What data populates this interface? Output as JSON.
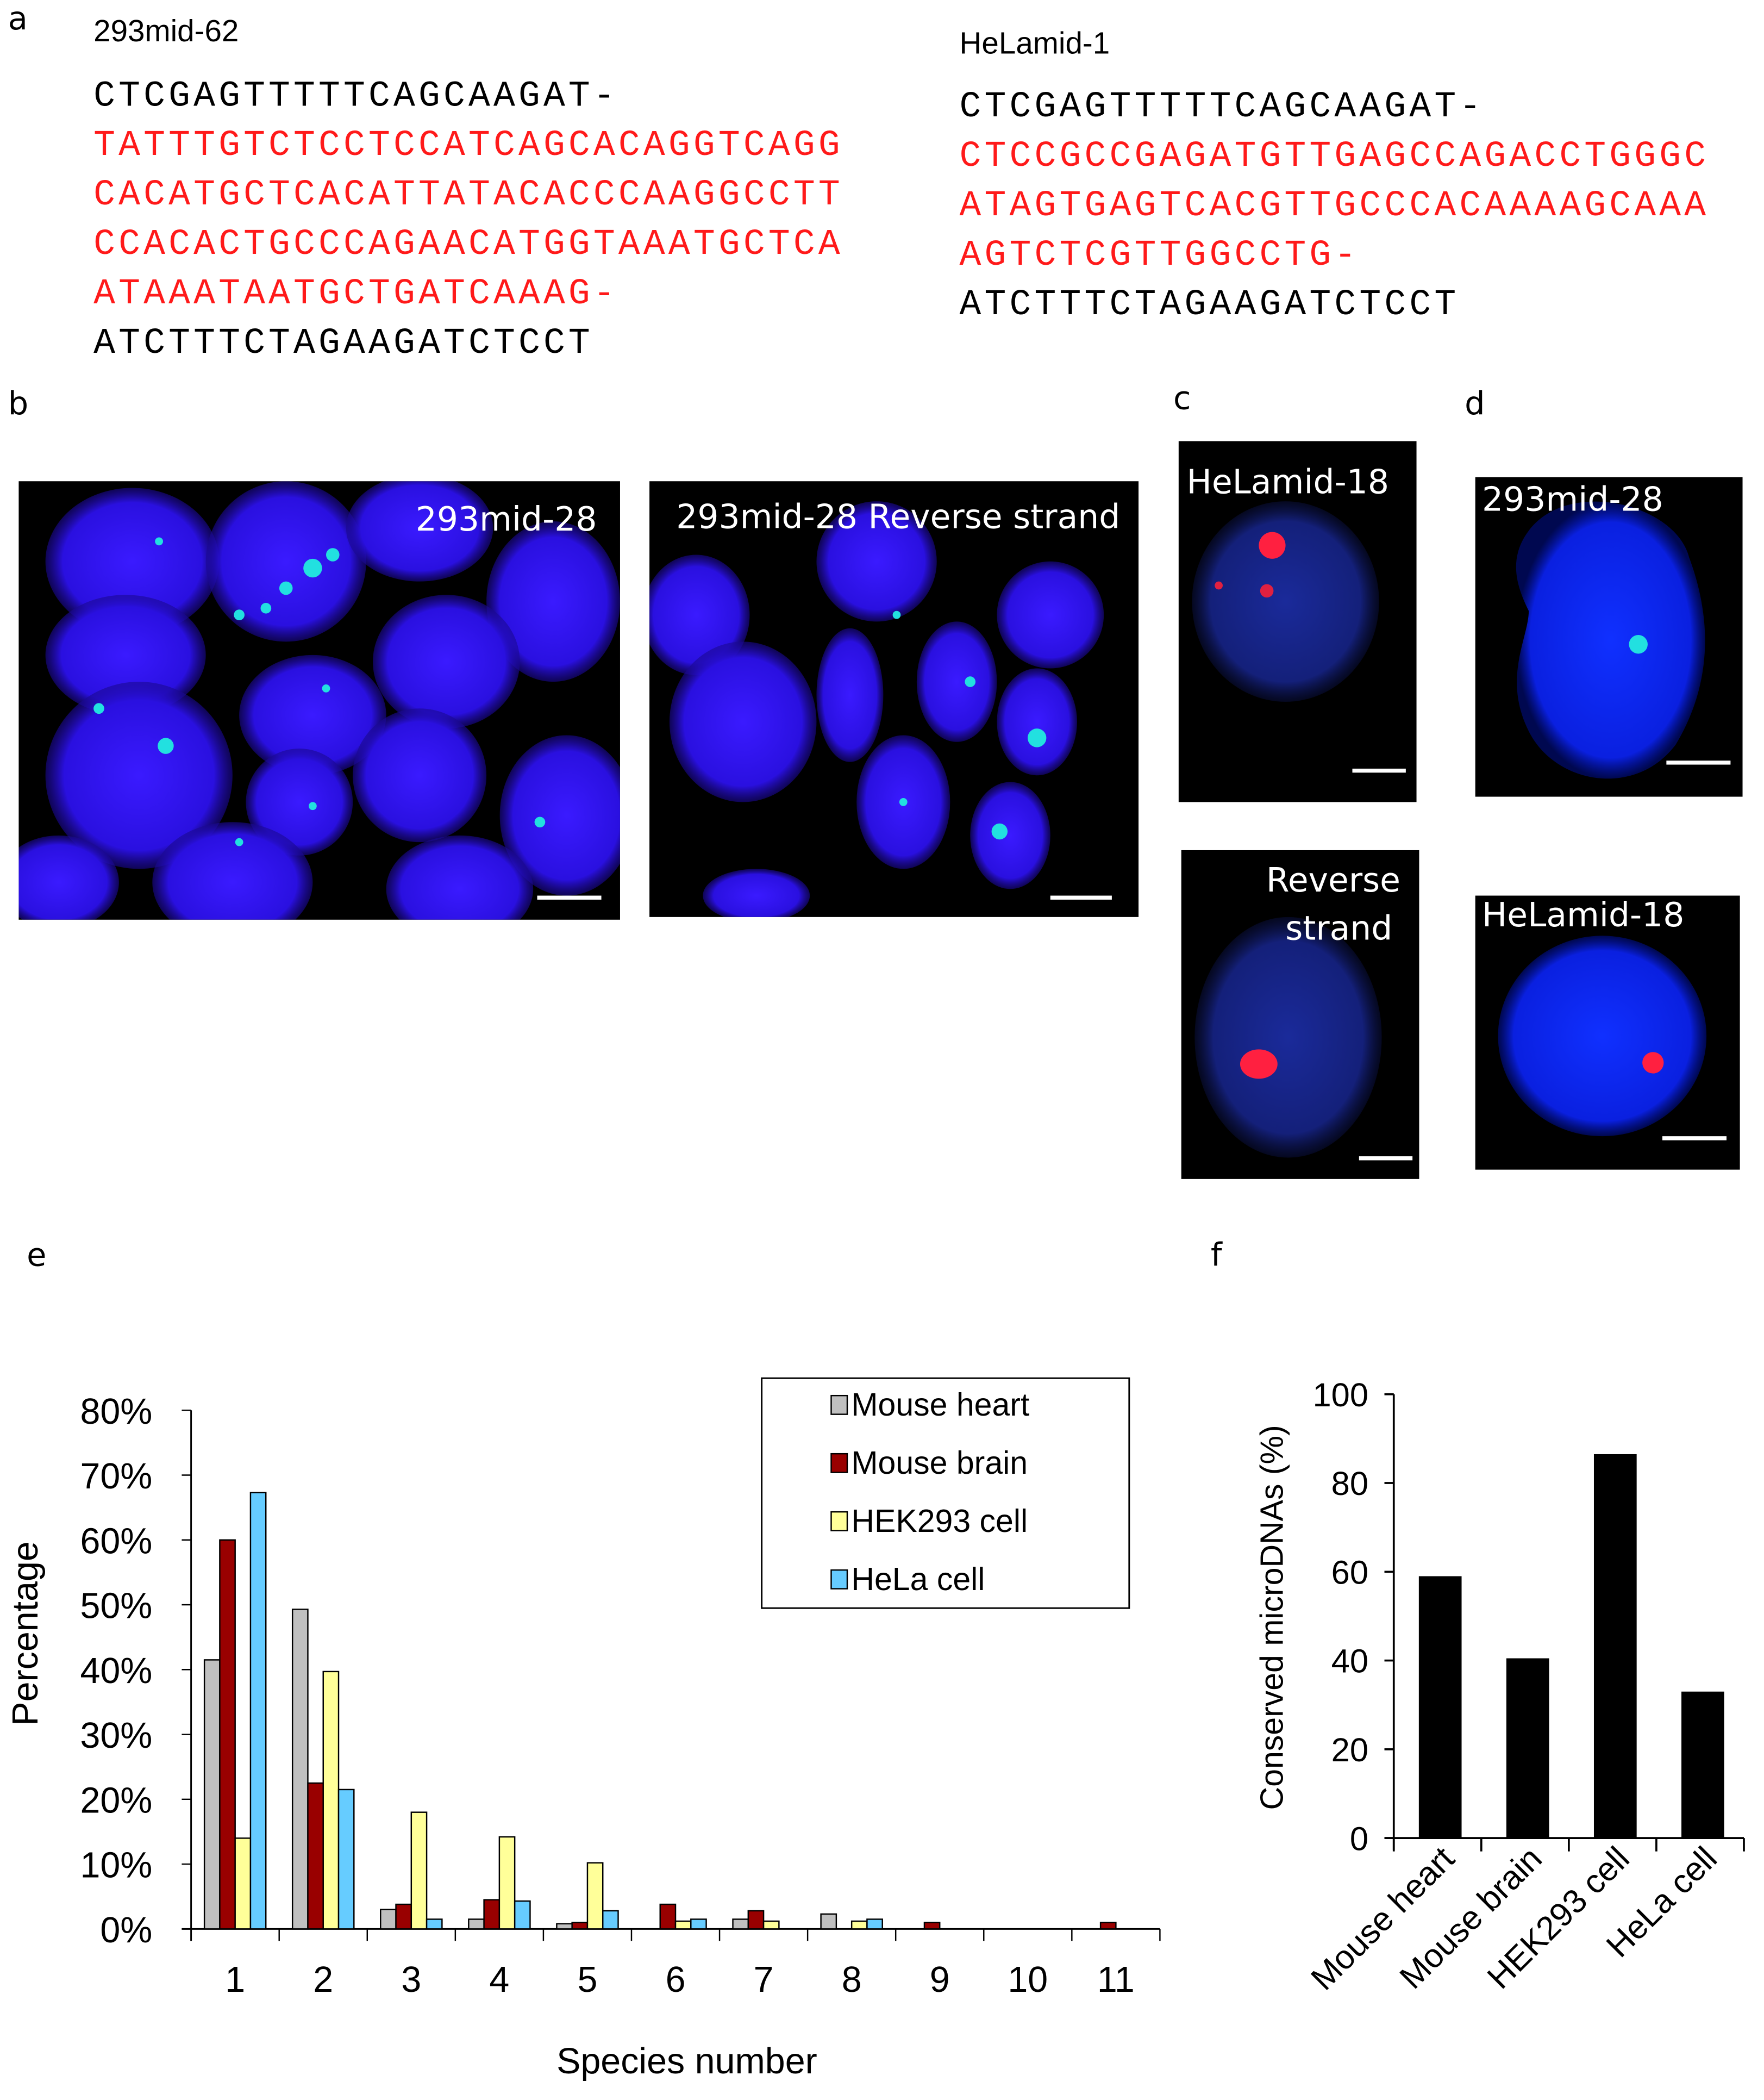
{
  "panel_labels": {
    "a": "a",
    "b": "b",
    "c": "c",
    "d": "d",
    "e": "e",
    "f": "f"
  },
  "panel_a": {
    "left": {
      "name": "293mid-62",
      "lines": [
        {
          "text": "CTCGAGTTTTTCAGCAAGAT-",
          "color": "black"
        },
        {
          "text": "TATTTGTCTCCTCCATCAGCACAGGTCAGG",
          "color": "red"
        },
        {
          "text": "CACATGCTCACATTATACACCCAAGGCCTT",
          "color": "red"
        },
        {
          "text": "CCACACTGCCCAGAACATGGTAAATGCTCA",
          "color": "red"
        },
        {
          "text": "ATAAATAATGCTGATCAAAG-",
          "color": "red"
        },
        {
          "text": "ATCTTTCTAGAAGATCTCCT",
          "color": "black"
        }
      ]
    },
    "right": {
      "name": "HeLamid-1",
      "lines": [
        {
          "text": "CTCGAGTTTTTCAGCAAGAT-",
          "color": "black"
        },
        {
          "text": "CTCCGCCGAGATGTTGAGCCAGACCTGGGC",
          "color": "red"
        },
        {
          "text": "ATAGTGAGTCACGTTGCCCACAAAAGCAAA",
          "color": "red"
        },
        {
          "text": "AGTCTCGTTGGCCTG-",
          "color": "red"
        },
        {
          "text": "ATCTTTCTAGAAGATCTCCT",
          "color": "black"
        }
      ]
    },
    "colors": {
      "insert": "#ff1a1a",
      "flank": "#000000"
    }
  },
  "panel_b": {
    "image1_label": "293mid-28",
    "image2_label": "293mid-28 Reverse strand"
  },
  "panel_c": {
    "image1_label": "HeLamid-18",
    "image2_label_line1": "Reverse",
    "image2_label_line2": "strand"
  },
  "panel_d": {
    "image1_label": "293mid-28",
    "image2_label": "HeLamid-18"
  },
  "chart_data": [
    {
      "type": "bar",
      "panel": "e",
      "xlabel": "Species number",
      "ylabel": "Percentage",
      "categories": [
        "1",
        "2",
        "3",
        "4",
        "5",
        "6",
        "7",
        "8",
        "9",
        "10",
        "11"
      ],
      "yticks": [
        "0%",
        "10%",
        "20%",
        "30%",
        "40%",
        "50%",
        "60%",
        "70%",
        "80%"
      ],
      "ylim": [
        0,
        80
      ],
      "legend_position": "top-right",
      "grid": false,
      "series": [
        {
          "name": "Mouse heart",
          "color": "#c0c0c0",
          "values": [
            41.5,
            49.3,
            3.0,
            1.5,
            0.8,
            0,
            1.5,
            2.3,
            0,
            0,
            0
          ]
        },
        {
          "name": "Mouse brain",
          "color": "#990000",
          "values": [
            60.0,
            22.5,
            3.8,
            4.5,
            1.0,
            3.8,
            2.8,
            0,
            1.0,
            0,
            1.0
          ]
        },
        {
          "name": "HEK293 cell",
          "color": "#ffff99",
          "values": [
            14.0,
            39.7,
            18.0,
            14.2,
            10.2,
            1.2,
            1.2,
            1.2,
            0,
            0,
            0
          ]
        },
        {
          "name": "HeLa cell",
          "color": "#66ccff",
          "values": [
            67.3,
            21.5,
            1.5,
            4.3,
            2.8,
            1.5,
            0,
            1.5,
            0,
            0,
            0
          ]
        }
      ]
    },
    {
      "type": "bar",
      "panel": "f",
      "xlabel": "",
      "ylabel": "Conserved microDNAs (%)",
      "categories": [
        "Mouse heart",
        "Mouse brain",
        "HEK293 cell",
        "HeLa cell"
      ],
      "yticks": [
        "0",
        "20",
        "40",
        "60",
        "80",
        "100"
      ],
      "ylim": [
        0,
        100
      ],
      "grid": false,
      "color": "#000000",
      "values": [
        59,
        40.5,
        86.5,
        33
      ]
    }
  ]
}
